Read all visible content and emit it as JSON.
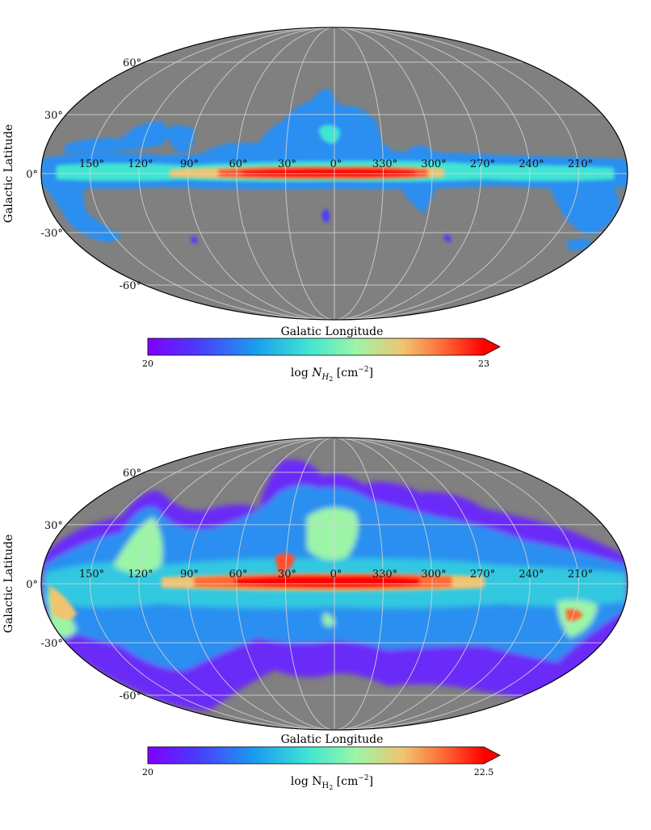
{
  "chart_data": [
    {
      "type": "heatmap",
      "projection": "mollweide",
      "xlabel": "Galatic Longitude",
      "ylabel": "Galactic Latitude",
      "longitude_ticks": [
        "150°",
        "120°",
        "90°",
        "60°",
        "30°",
        "0°",
        "330°",
        "300°",
        "270°",
        "240°",
        "210°"
      ],
      "latitude_ticks": [
        "60°",
        "30°",
        "0°",
        "-30°",
        "-60°"
      ],
      "colormap": "rainbow",
      "colorbar": {
        "min": "20",
        "max": "23",
        "label_base": "log ",
        "label_var": "N",
        "label_sub": "H",
        "label_subsub": "2",
        "label_unit": " [cm",
        "label_exp": "−2",
        "label_close": "]",
        "extend": "max"
      },
      "background_color": "#808080",
      "gridlines": true
    },
    {
      "type": "heatmap",
      "projection": "mollweide",
      "xlabel": "Galatic Longitude",
      "ylabel": "Galactic Latitude",
      "longitude_ticks": [
        "150°",
        "120°",
        "90°",
        "60°",
        "30°",
        "0°",
        "330°",
        "300°",
        "270°",
        "240°",
        "210°"
      ],
      "latitude_ticks": [
        "60°",
        "30°",
        "0°",
        "-30°",
        "-60°"
      ],
      "colormap": "rainbow",
      "colorbar": {
        "min": "20",
        "max": "22.5",
        "label_base": "log N",
        "label_var": "",
        "label_sub": "H",
        "label_subsub": "2",
        "label_unit": " [cm",
        "label_exp": "−2",
        "label_close": "]",
        "extend": "max"
      },
      "background_color": "#808080",
      "gridlines": true
    }
  ]
}
